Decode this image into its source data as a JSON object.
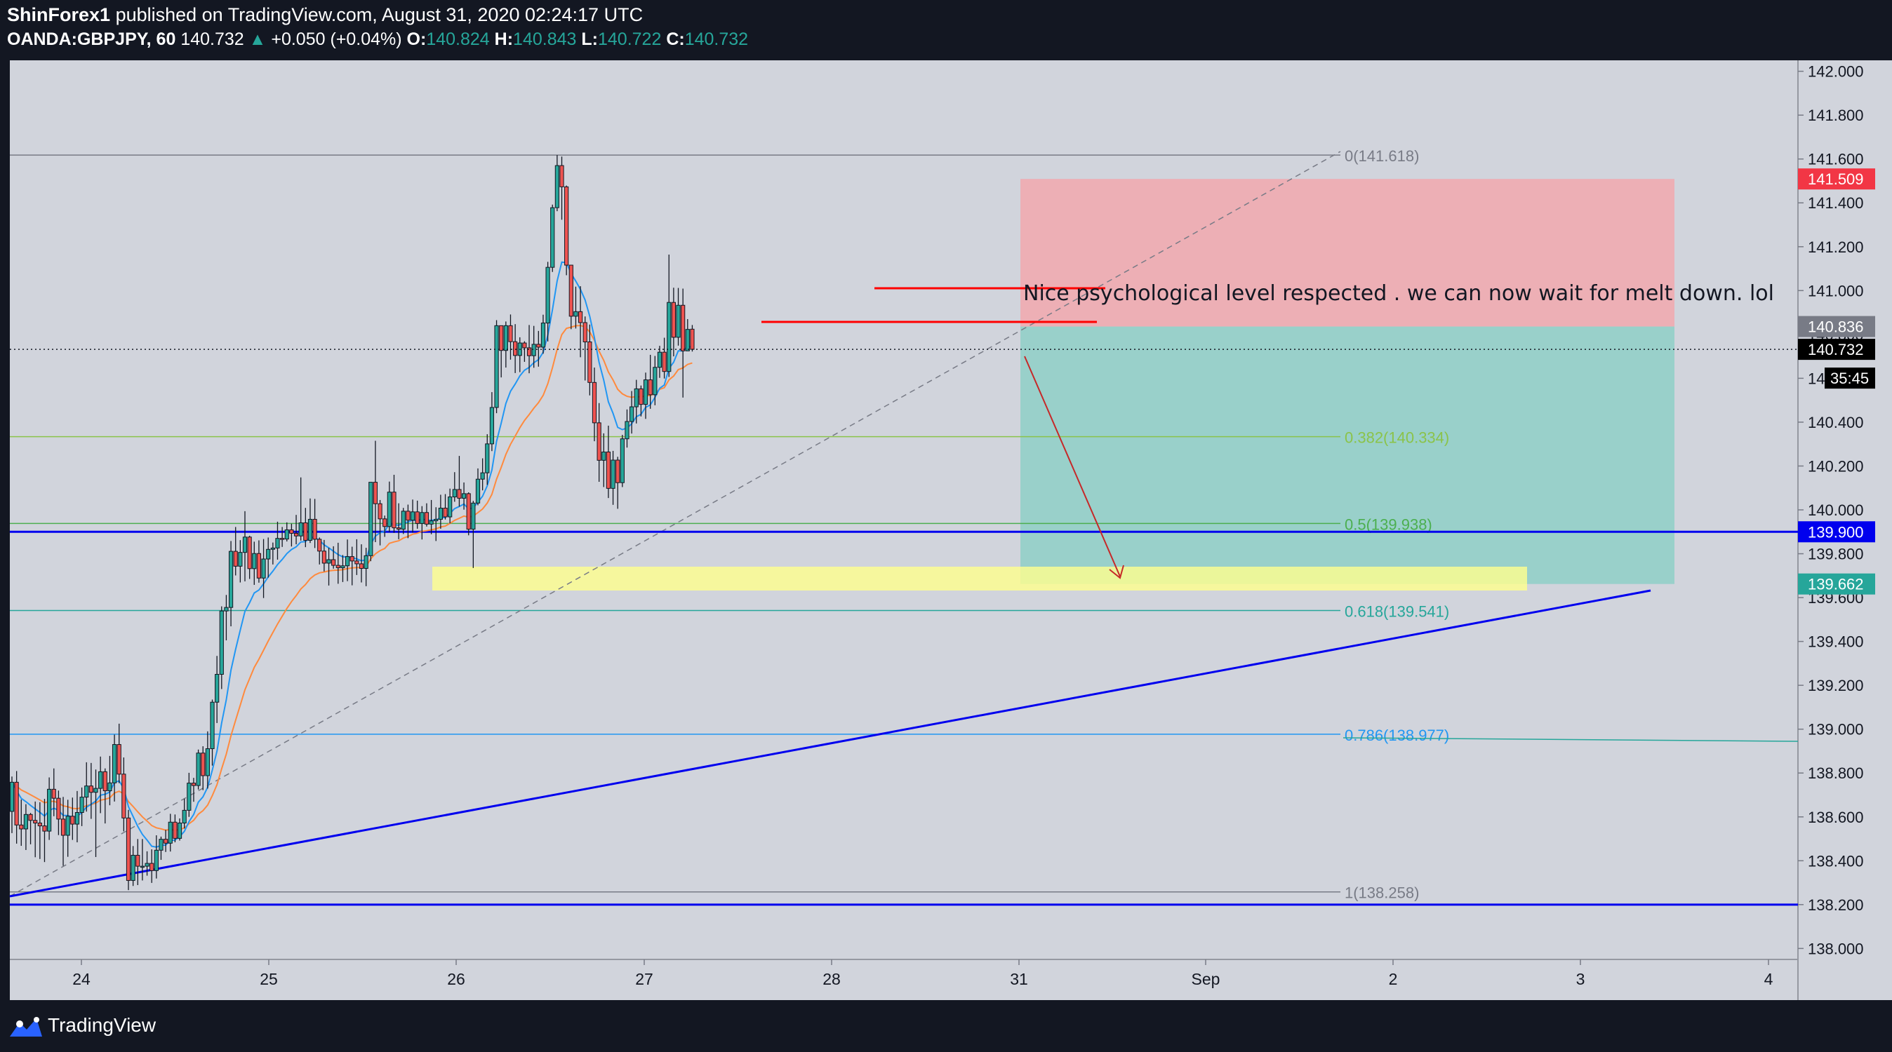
{
  "header": {
    "author": "ShinForex1",
    "published_text": "published on TradingView.com, August 31, 2020 02:24:17 UTC",
    "symbol": "OANDA:GBPJPY, 60",
    "last": "140.732",
    "change_arrow": "▲",
    "change": "+0.050 (+0.04%)",
    "o_label": "O:",
    "o_value": "140.824",
    "h_label": "H:",
    "h_value": "140.843",
    "l_label": "L:",
    "l_value": "140.722",
    "c_label": "C:",
    "c_value": "140.732"
  },
  "footer": {
    "brand": "TradingView"
  },
  "colors": {
    "background": "#131722",
    "plot": "#d1d4dc",
    "up": "#26a69a",
    "down": "#ef5350",
    "ema_fast": "#2196f3",
    "ema_slow": "#ff8a3d",
    "trendline": "#0000ee",
    "red_level": "#ff0000",
    "stop_zone": "#f5a3a8",
    "target_zone": "#8fcfc7",
    "demand_zone": "#ffff8d"
  },
  "chart_data": {
    "type": "candlestick",
    "series_label": "OANDA:GBPJPY, 60",
    "x_ticks": [
      "24",
      "25",
      "26",
      "27",
      "28",
      "31",
      "Sep",
      "2",
      "3",
      "4"
    ],
    "y_ticks": [
      "142.000",
      "141.800",
      "141.600",
      "141.400",
      "141.200",
      "141.000",
      "140.800",
      "140.600",
      "140.400",
      "140.200",
      "140.000",
      "139.800",
      "139.600",
      "139.400",
      "139.200",
      "139.000",
      "138.800",
      "138.600",
      "138.400",
      "138.200",
      "138.000"
    ],
    "ylim": [
      137.95,
      142.05
    ],
    "price_tags": [
      {
        "label": "141.509",
        "value": 141.509,
        "color": "#f23645",
        "text_color": "#ffffff"
      },
      {
        "label": "140.836",
        "value": 140.836,
        "color": "#787b86",
        "text_color": "#ffffff"
      },
      {
        "label": "140.732",
        "value": 140.732,
        "color": "#000000",
        "text_color": "#ffffff"
      },
      {
        "label": "139.900",
        "value": 139.9,
        "color": "#0000ee",
        "text_color": "#ffffff"
      },
      {
        "label": "139.662",
        "value": 139.662,
        "color": "#26a69a",
        "text_color": "#ffffff"
      }
    ],
    "countdown": "35:45",
    "fib_levels": [
      {
        "label": "0(141.618)",
        "ratio": 0,
        "value": 141.618,
        "color": "#787b86"
      },
      {
        "label": "0.382(140.334)",
        "ratio": 0.382,
        "value": 140.334,
        "color": "#8bc34a"
      },
      {
        "label": "0.5(139.938)",
        "ratio": 0.5,
        "value": 139.938,
        "color": "#4caf50"
      },
      {
        "label": "0.618(139.541)",
        "ratio": 0.618,
        "value": 139.541,
        "color": "#26a69a"
      },
      {
        "label": "0.786(138.977)",
        "ratio": 0.786,
        "value": 138.977,
        "color": "#2196f3"
      },
      {
        "label": "1(138.258)",
        "ratio": 1,
        "value": 138.258,
        "color": "#787b86"
      }
    ],
    "horizontal_levels": [
      139.9,
      138.2
    ],
    "annotation": "Nice psychological level respected . we can now wait for melt down. lol",
    "position": {
      "side": "short",
      "entry": 140.836,
      "stop": 141.509,
      "target": 139.662
    },
    "candles": [
      [
        138.625,
        138.784,
        138.526,
        138.758
      ],
      [
        138.758,
        138.809,
        138.478,
        138.563
      ],
      [
        138.563,
        138.679,
        138.468,
        138.545
      ],
      [
        138.545,
        138.658,
        138.449,
        138.611
      ],
      [
        138.611,
        138.618,
        138.475,
        138.584
      ],
      [
        138.584,
        138.67,
        138.416,
        138.572
      ],
      [
        138.572,
        138.667,
        138.408,
        138.559
      ],
      [
        138.559,
        138.682,
        138.394,
        138.535
      ],
      [
        138.535,
        138.78,
        138.495,
        138.726
      ],
      [
        138.726,
        138.821,
        138.603,
        138.685
      ],
      [
        138.685,
        138.72,
        138.517,
        138.59
      ],
      [
        138.59,
        138.691,
        138.377,
        138.516
      ],
      [
        138.516,
        138.678,
        138.418,
        138.603
      ],
      [
        138.603,
        138.688,
        138.495,
        138.567
      ],
      [
        138.567,
        138.718,
        138.484,
        138.62
      ],
      [
        138.62,
        138.734,
        138.558,
        138.69
      ],
      [
        138.69,
        138.849,
        138.624,
        138.741
      ],
      [
        138.741,
        138.846,
        138.591,
        138.712
      ],
      [
        138.712,
        138.816,
        138.417,
        138.73
      ],
      [
        138.73,
        138.875,
        138.617,
        138.806
      ],
      [
        138.806,
        138.821,
        138.57,
        138.719
      ],
      [
        138.719,
        138.878,
        138.653,
        138.755
      ],
      [
        138.755,
        138.975,
        138.67,
        138.93
      ],
      [
        138.93,
        139.025,
        138.754,
        138.795
      ],
      [
        138.795,
        138.871,
        138.534,
        138.595
      ],
      [
        138.595,
        138.632,
        138.266,
        138.31
      ],
      [
        138.31,
        138.467,
        138.285,
        138.425
      ],
      [
        138.425,
        138.499,
        138.289,
        138.375
      ],
      [
        138.375,
        138.499,
        138.31,
        138.375
      ],
      [
        138.375,
        138.443,
        138.332,
        138.388
      ],
      [
        138.388,
        138.452,
        138.299,
        138.355
      ],
      [
        138.355,
        138.516,
        138.319,
        138.448
      ],
      [
        138.448,
        138.51,
        138.404,
        138.498
      ],
      [
        138.498,
        138.541,
        138.44,
        138.48
      ],
      [
        138.48,
        138.614,
        138.442,
        138.576
      ],
      [
        138.576,
        138.611,
        138.484,
        138.502
      ],
      [
        138.502,
        138.593,
        138.492,
        138.572
      ],
      [
        138.572,
        138.683,
        138.547,
        138.63
      ],
      [
        138.63,
        138.801,
        138.6,
        138.754
      ],
      [
        138.754,
        138.778,
        138.669,
        138.743
      ],
      [
        138.743,
        138.907,
        138.725,
        138.891
      ],
      [
        138.891,
        138.922,
        138.722,
        138.788
      ],
      [
        138.788,
        138.99,
        138.729,
        138.911
      ],
      [
        138.911,
        139.135,
        138.834,
        139.123
      ],
      [
        139.123,
        139.334,
        139.028,
        139.25
      ],
      [
        139.25,
        139.56,
        139.183,
        139.539
      ],
      [
        139.539,
        139.612,
        139.405,
        139.555
      ],
      [
        139.555,
        139.858,
        139.469,
        139.811
      ],
      [
        139.811,
        139.922,
        139.701,
        139.743
      ],
      [
        139.743,
        139.862,
        139.669,
        139.806
      ],
      [
        139.806,
        139.994,
        139.674,
        139.876
      ],
      [
        139.876,
        139.882,
        139.685,
        139.732
      ],
      [
        139.732,
        139.855,
        139.658,
        139.801
      ],
      [
        139.801,
        139.861,
        139.668,
        139.689
      ],
      [
        139.689,
        139.867,
        139.598,
        139.776
      ],
      [
        139.776,
        139.874,
        139.691,
        139.82
      ],
      [
        139.82,
        139.851,
        139.751,
        139.826
      ],
      [
        139.826,
        139.946,
        139.773,
        139.87
      ],
      [
        139.87,
        139.922,
        139.831,
        139.867
      ],
      [
        139.867,
        139.943,
        139.856,
        139.909
      ],
      [
        139.909,
        139.937,
        139.833,
        139.893
      ],
      [
        139.893,
        139.977,
        139.843,
        139.881
      ],
      [
        139.881,
        140.148,
        139.86,
        139.941
      ],
      [
        139.941,
        140.009,
        139.83,
        139.861
      ],
      [
        139.861,
        140.052,
        139.849,
        139.957
      ],
      [
        139.957,
        140.05,
        139.826,
        139.866
      ],
      [
        139.866,
        139.874,
        139.751,
        139.812
      ],
      [
        139.812,
        139.863,
        139.719,
        139.757
      ],
      [
        139.757,
        139.827,
        139.655,
        139.773
      ],
      [
        139.773,
        139.834,
        139.732,
        139.747
      ],
      [
        139.747,
        139.85,
        139.663,
        139.736
      ],
      [
        139.736,
        139.794,
        139.671,
        139.745
      ],
      [
        139.745,
        139.865,
        139.675,
        139.787
      ],
      [
        139.787,
        139.832,
        139.656,
        139.767
      ],
      [
        139.767,
        139.866,
        139.703,
        139.754
      ],
      [
        139.754,
        139.843,
        139.669,
        139.733
      ],
      [
        139.733,
        139.827,
        139.652,
        139.791
      ],
      [
        139.791,
        140.126,
        139.766,
        140.126
      ],
      [
        140.126,
        140.315,
        139.853,
        140.028
      ],
      [
        140.028,
        140.045,
        139.838,
        139.959
      ],
      [
        139.959,
        139.974,
        139.877,
        139.924
      ],
      [
        139.924,
        140.129,
        139.899,
        140.081
      ],
      [
        140.081,
        140.16,
        139.895,
        139.918
      ],
      [
        139.918,
        140.03,
        139.866,
        139.912
      ],
      [
        139.912,
        140.009,
        139.89,
        139.994
      ],
      [
        139.994,
        140.024,
        139.871,
        139.953
      ],
      [
        139.953,
        140.047,
        139.896,
        139.991
      ],
      [
        139.991,
        140.042,
        139.914,
        139.938
      ],
      [
        139.938,
        140.017,
        139.865,
        139.988
      ],
      [
        139.988,
        140.03,
        139.924,
        139.935
      ],
      [
        139.935,
        140.045,
        139.889,
        139.95
      ],
      [
        139.95,
        140.012,
        139.858,
        139.957
      ],
      [
        139.957,
        140.069,
        139.914,
        140.008
      ],
      [
        140.008,
        140.072,
        139.956,
        139.968
      ],
      [
        139.968,
        140.097,
        139.938,
        140.059
      ],
      [
        140.059,
        140.172,
        140.037,
        140.093
      ],
      [
        140.093,
        140.246,
        140.015,
        140.053
      ],
      [
        140.053,
        140.125,
        140.001,
        140.074
      ],
      [
        140.074,
        140.08,
        139.884,
        139.912
      ],
      [
        139.912,
        140.041,
        139.735,
        140.031
      ],
      [
        140.031,
        140.189,
        140.021,
        140.14
      ],
      [
        140.14,
        140.235,
        140.089,
        140.169
      ],
      [
        140.169,
        140.345,
        140.114,
        140.301
      ],
      [
        140.301,
        140.537,
        140.268,
        140.467
      ],
      [
        140.467,
        140.865,
        140.441,
        140.84
      ],
      [
        140.84,
        140.84,
        140.604,
        140.727
      ],
      [
        140.727,
        140.859,
        140.649,
        140.84
      ],
      [
        140.84,
        140.891,
        140.685,
        140.767
      ],
      [
        140.767,
        140.847,
        140.624,
        140.704
      ],
      [
        140.704,
        140.787,
        140.628,
        140.761
      ],
      [
        140.761,
        140.769,
        140.675,
        140.739
      ],
      [
        140.739,
        140.843,
        140.623,
        140.703
      ],
      [
        140.703,
        140.839,
        140.648,
        140.755
      ],
      [
        140.755,
        140.816,
        140.653,
        140.742
      ],
      [
        140.742,
        140.89,
        140.712,
        140.852
      ],
      [
        140.852,
        141.131,
        140.768,
        141.106
      ],
      [
        141.106,
        141.392,
        141.085,
        141.378
      ],
      [
        141.378,
        141.618,
        141.362,
        141.57
      ],
      [
        141.57,
        141.611,
        141.323,
        141.473
      ],
      [
        141.473,
        141.479,
        141.07,
        141.116
      ],
      [
        141.116,
        141.117,
        140.824,
        140.883
      ],
      [
        140.883,
        141.018,
        140.827,
        140.904
      ],
      [
        140.904,
        141.02,
        140.696,
        140.854
      ],
      [
        140.854,
        140.882,
        140.59,
        140.766
      ],
      [
        140.766,
        140.845,
        140.522,
        140.581
      ],
      [
        140.581,
        140.649,
        140.313,
        140.397
      ],
      [
        140.397,
        140.487,
        140.128,
        140.226
      ],
      [
        140.226,
        140.349,
        140.104,
        140.264
      ],
      [
        140.264,
        140.384,
        140.054,
        140.098
      ],
      [
        140.098,
        140.269,
        140.023,
        140.227
      ],
      [
        140.227,
        140.242,
        140.005,
        140.124
      ],
      [
        140.124,
        140.342,
        140.104,
        140.324
      ],
      [
        140.324,
        140.458,
        140.284,
        140.403
      ],
      [
        140.403,
        140.542,
        140.348,
        140.47
      ],
      [
        140.47,
        140.593,
        140.394,
        140.552
      ],
      [
        140.552,
        140.567,
        140.426,
        140.481
      ],
      [
        140.481,
        140.626,
        140.415,
        140.593
      ],
      [
        140.593,
        140.707,
        140.461,
        140.525
      ],
      [
        140.525,
        140.702,
        140.477,
        140.65
      ],
      [
        140.65,
        140.748,
        140.602,
        140.719
      ],
      [
        140.719,
        140.785,
        140.599,
        140.631
      ],
      [
        140.631,
        141.164,
        140.606,
        140.946
      ],
      [
        140.946,
        141.013,
        140.7,
        140.787
      ],
      [
        140.787,
        141.012,
        140.749,
        140.933
      ],
      [
        140.933,
        141.009,
        140.512,
        140.725
      ],
      [
        140.725,
        140.87,
        140.725,
        140.823
      ],
      [
        140.824,
        140.843,
        140.722,
        140.732
      ]
    ]
  }
}
